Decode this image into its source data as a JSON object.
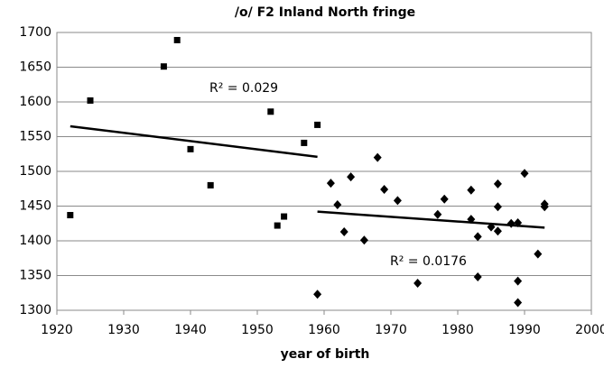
{
  "chart_data": {
    "type": "scatter",
    "title": "/o/ F2 Inland North fringe",
    "x_label": "year of birth",
    "xlim": [
      1920,
      2000
    ],
    "xticks": [
      1920,
      1930,
      1940,
      1950,
      1960,
      1970,
      1980,
      1990,
      2000
    ],
    "ylim": [
      1300,
      1700
    ],
    "yticks": [
      1300,
      1350,
      1400,
      1450,
      1500,
      1550,
      1600,
      1650,
      1700
    ],
    "grid": true,
    "series": [
      {
        "color": "#000000",
        "marker": "square",
        "x": [
          1922,
          1925,
          1936,
          1938,
          1940,
          1943,
          1952,
          1953,
          1954,
          1957,
          1959
        ],
        "values": [
          1437,
          1602,
          1651,
          1689,
          1532,
          1480,
          1586,
          1422,
          1435,
          1541,
          1567
        ]
      },
      {
        "color": "#000000",
        "marker": "diamond",
        "x": [
          1959,
          1961,
          1962,
          1963,
          1964,
          1966,
          1968,
          1969,
          1971,
          1974,
          1977,
          1978,
          1982,
          1982,
          1983,
          1983,
          1985,
          1986,
          1986,
          1986,
          1988,
          1989,
          1989,
          1989,
          1990,
          1992,
          1993,
          1993
        ],
        "values": [
          1323,
          1483,
          1452,
          1413,
          1492,
          1401,
          1520,
          1474,
          1458,
          1339,
          1438,
          1460,
          1473,
          1431,
          1406,
          1348,
          1420,
          1482,
          1449,
          1414,
          1425,
          1426,
          1342,
          1311,
          1497,
          1381,
          1453,
          1449
        ]
      }
    ],
    "trendlines": [
      {
        "color": "#000000",
        "x": [
          1922,
          1959
        ],
        "values": [
          1565,
          1521
        ]
      },
      {
        "color": "#000000",
        "x": [
          1959,
          1993
        ],
        "values": [
          1442,
          1419
        ]
      }
    ],
    "annotations": [
      "R² = 0.029",
      "R² = 0.0176"
    ]
  }
}
